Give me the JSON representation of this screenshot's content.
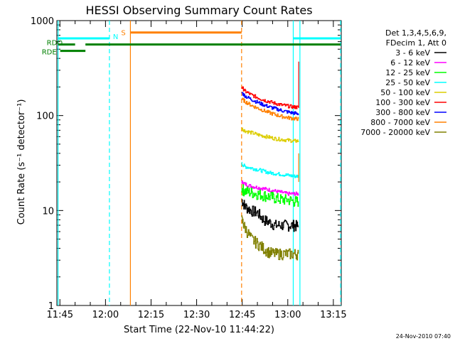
{
  "chart_data": {
    "type": "line",
    "title": "HESSI Observing Summary Count Rates",
    "xlabel": "Start Time (22-Nov-10 11:44:22)",
    "ylabel": "Count Rate (s⁻¹ detector⁻¹)",
    "y_scale": "log",
    "ylim": [
      1,
      1000
    ],
    "xlim_minutes": [
      704.0,
      797.6
    ],
    "x_ticks": [
      {
        "label": "11:45",
        "minutes": 705
      },
      {
        "label": "12:00",
        "minutes": 720
      },
      {
        "label": "12:15",
        "minutes": 735
      },
      {
        "label": "12:30",
        "minutes": 750
      },
      {
        "label": "12:45",
        "minutes": 765
      },
      {
        "label": "13:00",
        "minutes": 780
      },
      {
        "label": "13:15",
        "minutes": 795
      }
    ],
    "y_ticks": [
      {
        "label": "1",
        "value": 1
      },
      {
        "label": "10",
        "value": 10
      },
      {
        "label": "100",
        "value": 100
      },
      {
        "label": "1000",
        "value": 1000
      }
    ],
    "legend": {
      "header": [
        "Det 1,3,4,5,6,9,",
        "FDecim 1, Att 0"
      ],
      "placement": "right",
      "entries": [
        {
          "label": "3 - 6 keV",
          "color": "#000000"
        },
        {
          "label": "6 - 12 keV",
          "color": "#ff00ff"
        },
        {
          "label": "12 - 25 keV",
          "color": "#00ff00"
        },
        {
          "label": "25 - 50 keV",
          "color": "#00ffff"
        },
        {
          "label": "50 - 100 keV",
          "color": "#dccd00"
        },
        {
          "label": "100 - 300 keV",
          "color": "#ff0000"
        },
        {
          "label": "300 - 800 keV",
          "color": "#0000ff"
        },
        {
          "label": "800 - 7000 keV",
          "color": "#ff8000"
        },
        {
          "label": "7000 - 20000 keV",
          "color": "#808000"
        }
      ]
    },
    "series": [
      {
        "name": "3 - 6 keV",
        "color": "#000000",
        "x": [
          764.8,
          766,
          768,
          770,
          772,
          774,
          776,
          778,
          780,
          782,
          783.5
        ],
        "y": [
          13,
          11,
          10,
          9.5,
          8,
          7.5,
          7,
          7,
          7,
          7,
          6.8
        ]
      },
      {
        "name": "6 - 12 keV",
        "color": "#ff00ff",
        "x": [
          764.8,
          766,
          768,
          770,
          772,
          774,
          776,
          778,
          780,
          782,
          783.5
        ],
        "y": [
          20,
          19,
          18,
          17.5,
          17,
          16.5,
          16,
          15.5,
          15,
          15,
          15
        ]
      },
      {
        "name": "12 - 25 keV",
        "color": "#00ff00",
        "x": [
          764.8,
          766,
          768,
          770,
          772,
          774,
          776,
          778,
          780,
          782,
          783.5
        ],
        "y": [
          17,
          16,
          15.5,
          15,
          14.5,
          14,
          13.5,
          13,
          13,
          12.5,
          12.5
        ]
      },
      {
        "name": "25 - 50 keV",
        "color": "#00ffff",
        "x": [
          764.8,
          766,
          768,
          770,
          772,
          774,
          776,
          778,
          780,
          782,
          783.5
        ],
        "y": [
          31,
          29,
          28,
          27,
          26,
          25,
          24.5,
          24,
          23.5,
          23,
          23
        ]
      },
      {
        "name": "50 - 100 keV",
        "color": "#dccd00",
        "x": [
          764.8,
          766,
          768,
          770,
          772,
          774,
          776,
          778,
          780,
          782,
          783.5
        ],
        "y": [
          73,
          69,
          66,
          63,
          61,
          59,
          57,
          56,
          55,
          54,
          54
        ]
      },
      {
        "name": "100 - 300 keV",
        "color": "#ff0000",
        "x": [
          764.8,
          766,
          768,
          770,
          772,
          774,
          776,
          778,
          780,
          782,
          783.5
        ],
        "y": [
          200,
          180,
          165,
          155,
          146,
          140,
          134,
          129,
          126,
          123,
          122
        ]
      },
      {
        "name": "300 - 800 keV",
        "color": "#0000ff",
        "x": [
          764.8,
          766,
          768,
          770,
          772,
          774,
          776,
          778,
          780,
          782,
          783.5
        ],
        "y": [
          175,
          160,
          148,
          138,
          130,
          123,
          118,
          113,
          109,
          106,
          105
        ]
      },
      {
        "name": "800 - 7000 keV",
        "color": "#ff8000",
        "x": [
          764.8,
          766,
          768,
          770,
          772,
          774,
          776,
          778,
          780,
          782,
          783.5
        ],
        "y": [
          150,
          140,
          128,
          120,
          113,
          107,
          102,
          98,
          95,
          93,
          92
        ]
      },
      {
        "name": "7000 - 20000 keV",
        "color": "#808000",
        "x": [
          764.8,
          766,
          768,
          770,
          772,
          774,
          776,
          778,
          780,
          782,
          783.5
        ],
        "y": [
          8,
          6.5,
          5,
          4.5,
          4,
          3.6,
          3.5,
          3.5,
          3.5,
          3.5,
          3.5
        ]
      }
    ],
    "flag_bars": [
      {
        "label": "N",
        "color": "#00ffff",
        "segments": [
          [
            704.4,
            721.3
          ],
          [
            781.8,
            797.4
          ]
        ],
        "y": 650
      },
      {
        "label": "S",
        "color": "#ff8000",
        "segments": [
          [
            728.2,
            764.8
          ]
        ],
        "y": 750
      },
      {
        "label": "RDO",
        "color": "#008000",
        "segments": [
          [
            704.4,
            710
          ],
          [
            713.4,
            797.4
          ]
        ],
        "y": 560
      },
      {
        "label": "RDE",
        "color": "#008000",
        "segments": [
          [
            705.1,
            713.4
          ]
        ],
        "y": 480
      }
    ],
    "vertical_markers": [
      {
        "minutes": 704.4,
        "color": "#00ffff",
        "style": "solid"
      },
      {
        "minutes": 721.3,
        "color": "#00ffff",
        "style": "dashed"
      },
      {
        "minutes": 728.2,
        "color": "#ff8000",
        "style": "solid"
      },
      {
        "minutes": 764.8,
        "color": "#ff8000",
        "style": "dashed"
      },
      {
        "minutes": 781.8,
        "color": "#00ffff",
        "style": "solid"
      },
      {
        "minutes": 784.0,
        "color": "#00ffff",
        "style": "solid"
      },
      {
        "minutes": 797.4,
        "color": "#00ffff",
        "style": "dashed"
      }
    ]
  },
  "footer_timestamp": "24-Nov-2010 07:40"
}
